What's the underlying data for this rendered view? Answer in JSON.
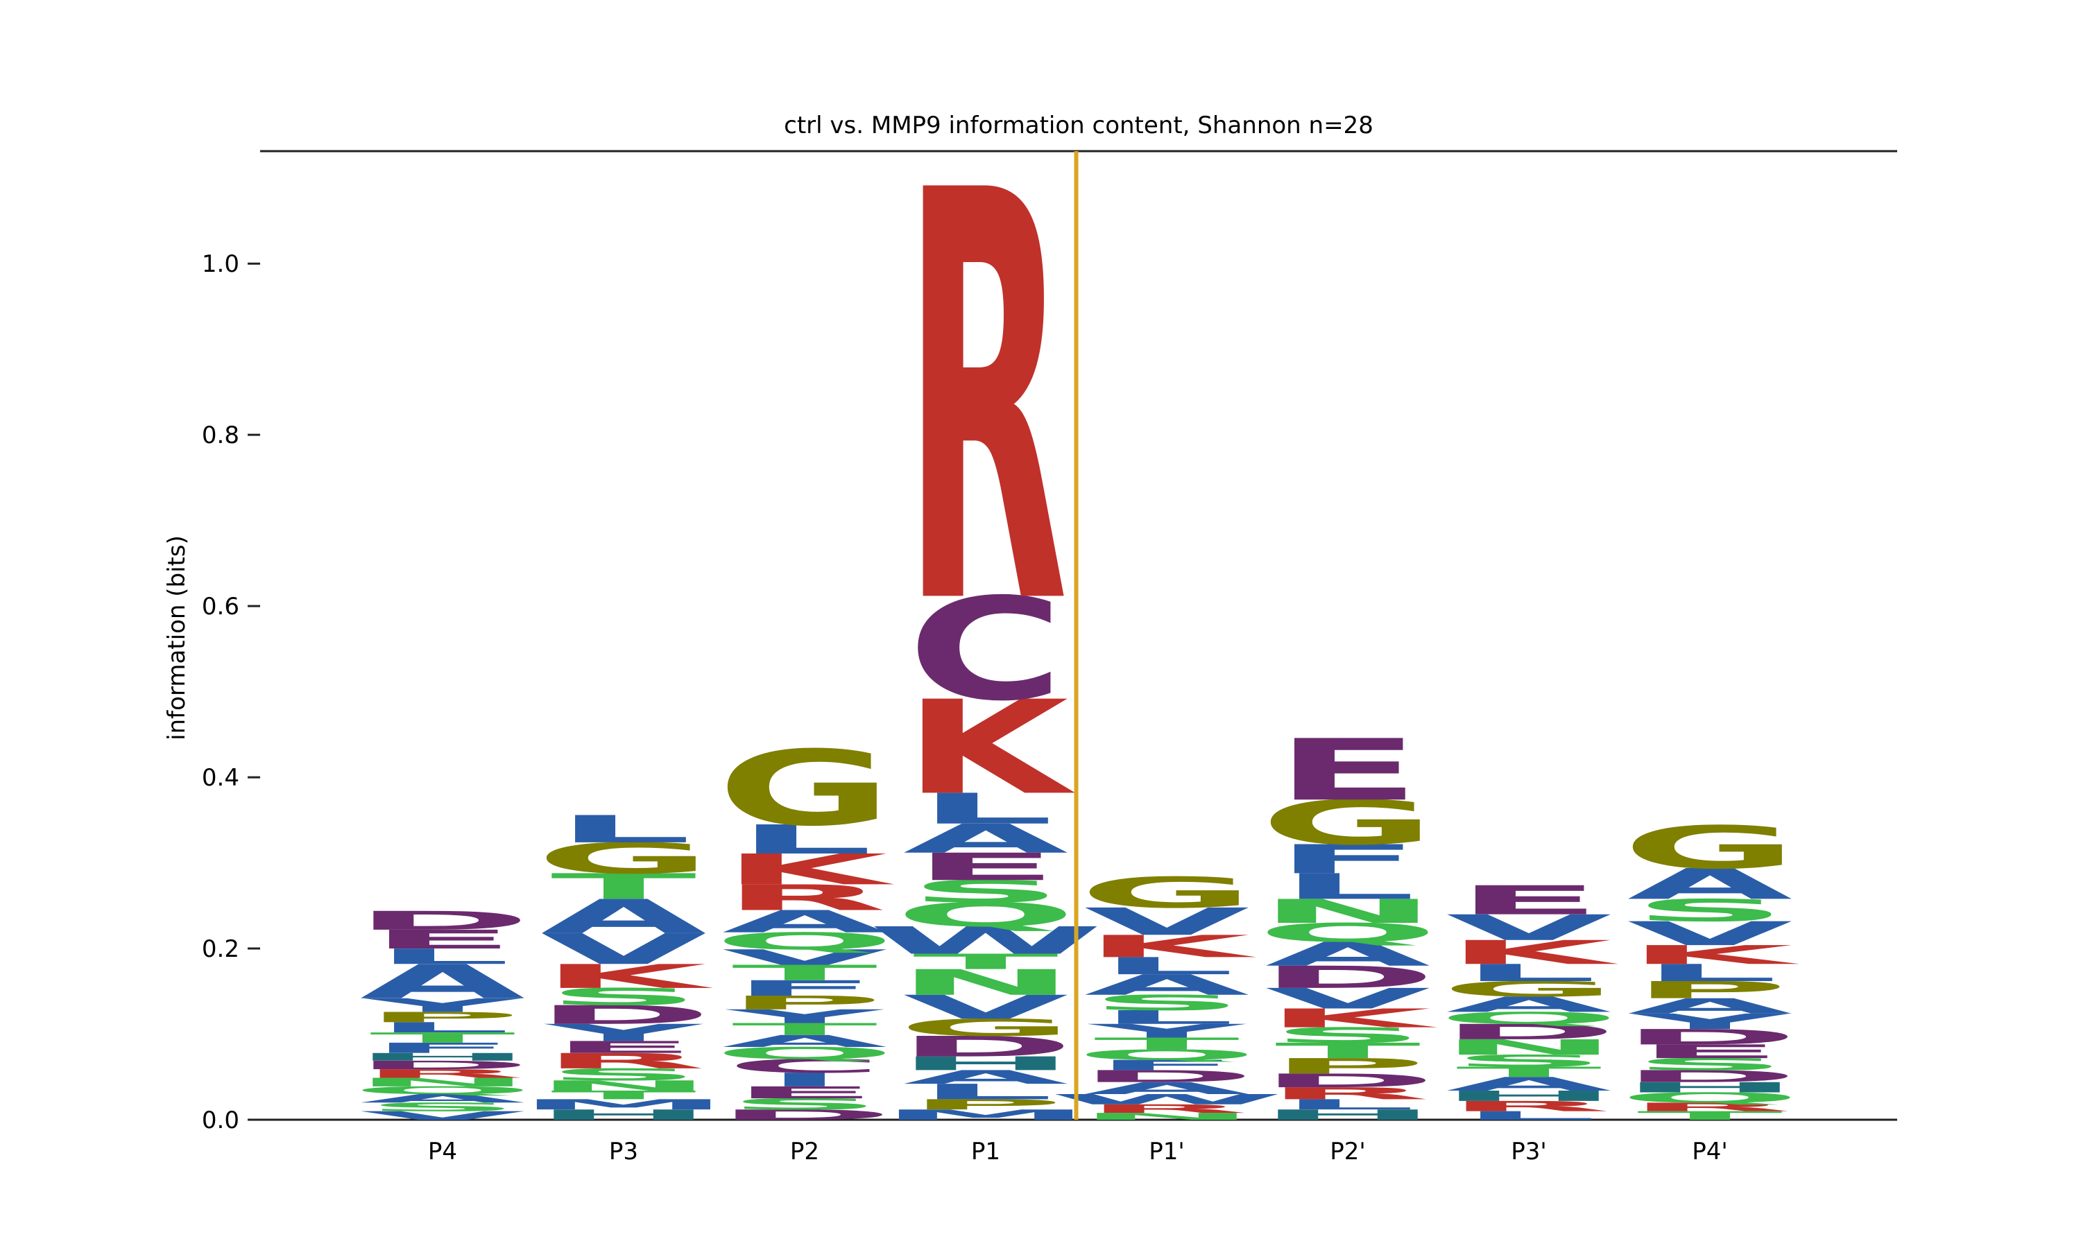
{
  "chart_data": {
    "type": "sequence-logo",
    "title": "ctrl vs. MMP9 information content, Shannon n=28",
    "xlabel": "",
    "ylabel": "information (bits)",
    "ylim": [
      0,
      1.15
    ],
    "yticks": [
      "0.0",
      "0.2",
      "0.4",
      "0.6",
      "0.8",
      "1.0"
    ],
    "categories": [
      "P4",
      "P3",
      "P2",
      "P1",
      "P1'",
      "P2'",
      "P3'",
      "P4'"
    ],
    "cleavage_marker_after": "P1",
    "cleavage_color": "#DAA520",
    "color_scheme": {
      "A": "#2A5DA8",
      "V": "#2A5DA8",
      "L": "#2A5DA8",
      "I": "#2A5DA8",
      "M": "#2A5DA8",
      "F": "#2A5DA8",
      "W": "#2A5DA8",
      "Y": "#2A5DA8",
      "G": "#7F7F00",
      "P": "#7F7F00",
      "S": "#3DBB4B",
      "T": "#3DBB4B",
      "N": "#3DBB4B",
      "Q": "#3DBB4B",
      "D": "#6B2A6E",
      "E": "#6B2A6E",
      "C": "#6B2A6E",
      "K": "#C0312A",
      "R": "#C0312A",
      "H": "#1E6E7A"
    },
    "positions": [
      {
        "name": "P4",
        "letters": [
          {
            "aa": "V",
            "h": 0.01
          },
          {
            "aa": "S",
            "h": 0.01
          },
          {
            "aa": "A",
            "h": 0.01
          },
          {
            "aa": "Q",
            "h": 0.009
          },
          {
            "aa": "N",
            "h": 0.01
          },
          {
            "aa": "R",
            "h": 0.01
          },
          {
            "aa": "D",
            "h": 0.01
          },
          {
            "aa": "H",
            "h": 0.009
          },
          {
            "aa": "F",
            "h": 0.012
          },
          {
            "aa": "T",
            "h": 0.012
          },
          {
            "aa": "L",
            "h": 0.012
          },
          {
            "aa": "P",
            "h": 0.012
          },
          {
            "aa": "Y",
            "h": 0.016
          },
          {
            "aa": "A",
            "h": 0.04
          },
          {
            "aa": "L",
            "h": 0.018
          },
          {
            "aa": "E",
            "h": 0.022
          },
          {
            "aa": "D",
            "h": 0.022
          }
        ]
      },
      {
        "name": "P3",
        "letters": [
          {
            "aa": "H",
            "h": 0.012
          },
          {
            "aa": "M",
            "h": 0.012
          },
          {
            "aa": "T",
            "h": 0.01
          },
          {
            "aa": "N",
            "h": 0.012
          },
          {
            "aa": "S",
            "h": 0.014
          },
          {
            "aa": "R",
            "h": 0.018
          },
          {
            "aa": "E",
            "h": 0.014
          },
          {
            "aa": "Y",
            "h": 0.02
          },
          {
            "aa": "D",
            "h": 0.022
          },
          {
            "aa": "S",
            "h": 0.02
          },
          {
            "aa": "K",
            "h": 0.028
          },
          {
            "aa": "V",
            "h": 0.036
          },
          {
            "aa": "A",
            "h": 0.04
          },
          {
            "aa": "T",
            "h": 0.03
          },
          {
            "aa": "G",
            "h": 0.036
          },
          {
            "aa": "L",
            "h": 0.032
          }
        ]
      },
      {
        "name": "P2",
        "letters": [
          {
            "aa": "D",
            "h": 0.012
          },
          {
            "aa": "S",
            "h": 0.013
          },
          {
            "aa": "E",
            "h": 0.014
          },
          {
            "aa": "I",
            "h": 0.016
          },
          {
            "aa": "C",
            "h": 0.016
          },
          {
            "aa": "Q",
            "h": 0.014
          },
          {
            "aa": "A",
            "h": 0.014
          },
          {
            "aa": "T",
            "h": 0.014
          },
          {
            "aa": "Y",
            "h": 0.016
          },
          {
            "aa": "P",
            "h": 0.016
          },
          {
            "aa": "F",
            "h": 0.018
          },
          {
            "aa": "T",
            "h": 0.018
          },
          {
            "aa": "V",
            "h": 0.018
          },
          {
            "aa": "Q",
            "h": 0.02
          },
          {
            "aa": "A",
            "h": 0.026
          },
          {
            "aa": "R",
            "h": 0.03
          },
          {
            "aa": "K",
            "h": 0.036
          },
          {
            "aa": "L",
            "h": 0.034
          },
          {
            "aa": "G",
            "h": 0.088
          }
        ]
      },
      {
        "name": "P1",
        "letters": [
          {
            "aa": "M",
            "h": 0.012
          },
          {
            "aa": "P",
            "h": 0.012
          },
          {
            "aa": "L",
            "h": 0.018
          },
          {
            "aa": "A",
            "h": 0.016
          },
          {
            "aa": "H",
            "h": 0.016
          },
          {
            "aa": "D",
            "h": 0.024
          },
          {
            "aa": "G",
            "h": 0.02
          },
          {
            "aa": "V",
            "h": 0.028
          },
          {
            "aa": "N",
            "h": 0.03
          },
          {
            "aa": "T",
            "h": 0.018
          },
          {
            "aa": "W",
            "h": 0.032
          },
          {
            "aa": "Q",
            "h": 0.028
          },
          {
            "aa": "S",
            "h": 0.026
          },
          {
            "aa": "E",
            "h": 0.032
          },
          {
            "aa": "A",
            "h": 0.034
          },
          {
            "aa": "L",
            "h": 0.036
          },
          {
            "aa": "K",
            "h": 0.11
          },
          {
            "aa": "C",
            "h": 0.12
          },
          {
            "aa": "R",
            "h": 0.48
          }
        ]
      },
      {
        "name": "P1'",
        "letters": [
          {
            "aa": "N",
            "h": 0.008
          },
          {
            "aa": "R",
            "h": 0.01
          },
          {
            "aa": "W",
            "h": 0.012
          },
          {
            "aa": "A",
            "h": 0.014
          },
          {
            "aa": "D",
            "h": 0.014
          },
          {
            "aa": "F",
            "h": 0.012
          },
          {
            "aa": "Q",
            "h": 0.012
          },
          {
            "aa": "T",
            "h": 0.014
          },
          {
            "aa": "Y",
            "h": 0.016
          },
          {
            "aa": "L",
            "h": 0.016
          },
          {
            "aa": "S",
            "h": 0.018
          },
          {
            "aa": "A",
            "h": 0.024
          },
          {
            "aa": "L",
            "h": 0.02
          },
          {
            "aa": "K",
            "h": 0.026
          },
          {
            "aa": "V",
            "h": 0.032
          },
          {
            "aa": "G",
            "h": 0.036
          }
        ]
      },
      {
        "name": "P2'",
        "letters": [
          {
            "aa": "H",
            "h": 0.012
          },
          {
            "aa": "L",
            "h": 0.012
          },
          {
            "aa": "R",
            "h": 0.014
          },
          {
            "aa": "D",
            "h": 0.016
          },
          {
            "aa": "P",
            "h": 0.018
          },
          {
            "aa": "T",
            "h": 0.018
          },
          {
            "aa": "S",
            "h": 0.018
          },
          {
            "aa": "K",
            "h": 0.022
          },
          {
            "aa": "V",
            "h": 0.024
          },
          {
            "aa": "D",
            "h": 0.026
          },
          {
            "aa": "A",
            "h": 0.028
          },
          {
            "aa": "Q",
            "h": 0.022
          },
          {
            "aa": "N",
            "h": 0.028
          },
          {
            "aa": "L",
            "h": 0.03
          },
          {
            "aa": "F",
            "h": 0.034
          },
          {
            "aa": "G",
            "h": 0.052
          },
          {
            "aa": "E",
            "h": 0.072
          }
        ]
      },
      {
        "name": "P3'",
        "letters": [
          {
            "aa": "L",
            "h": 0.01
          },
          {
            "aa": "R",
            "h": 0.012
          },
          {
            "aa": "H",
            "h": 0.012
          },
          {
            "aa": "A",
            "h": 0.016
          },
          {
            "aa": "T",
            "h": 0.012
          },
          {
            "aa": "S",
            "h": 0.014
          },
          {
            "aa": "N",
            "h": 0.018
          },
          {
            "aa": "D",
            "h": 0.018
          },
          {
            "aa": "Q",
            "h": 0.014
          },
          {
            "aa": "A",
            "h": 0.018
          },
          {
            "aa": "G",
            "h": 0.018
          },
          {
            "aa": "L",
            "h": 0.02
          },
          {
            "aa": "K",
            "h": 0.028
          },
          {
            "aa": "V",
            "h": 0.03
          },
          {
            "aa": "E",
            "h": 0.034
          }
        ]
      },
      {
        "name": "P4'",
        "letters": [
          {
            "aa": "T",
            "h": 0.01
          },
          {
            "aa": "R",
            "h": 0.01
          },
          {
            "aa": "Q",
            "h": 0.012
          },
          {
            "aa": "H",
            "h": 0.012
          },
          {
            "aa": "D",
            "h": 0.014
          },
          {
            "aa": "S",
            "h": 0.014
          },
          {
            "aa": "E",
            "h": 0.016
          },
          {
            "aa": "D",
            "h": 0.018
          },
          {
            "aa": "Y",
            "h": 0.018
          },
          {
            "aa": "A",
            "h": 0.018
          },
          {
            "aa": "P",
            "h": 0.02
          },
          {
            "aa": "L",
            "h": 0.02
          },
          {
            "aa": "K",
            "h": 0.022
          },
          {
            "aa": "V",
            "h": 0.028
          },
          {
            "aa": "S",
            "h": 0.026
          },
          {
            "aa": "A",
            "h": 0.036
          },
          {
            "aa": "G",
            "h": 0.05
          }
        ]
      }
    ]
  }
}
